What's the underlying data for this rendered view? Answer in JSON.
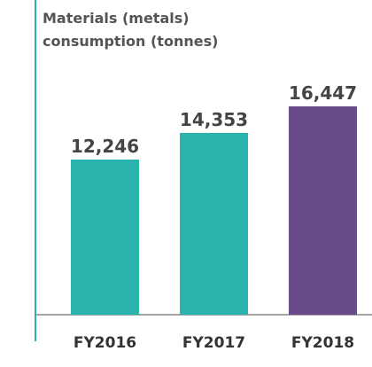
{
  "chart_data": {
    "type": "bar",
    "title": "Materials (metals) consumption (tonnes)",
    "categories": [
      "FY2016",
      "FY2017",
      "FY2018"
    ],
    "values": [
      12246,
      14353,
      16447
    ],
    "value_labels": [
      "12,246",
      "14,353",
      "16,447"
    ],
    "colors": [
      "#2bb3ad",
      "#2bb3ad",
      "#684c89"
    ]
  }
}
